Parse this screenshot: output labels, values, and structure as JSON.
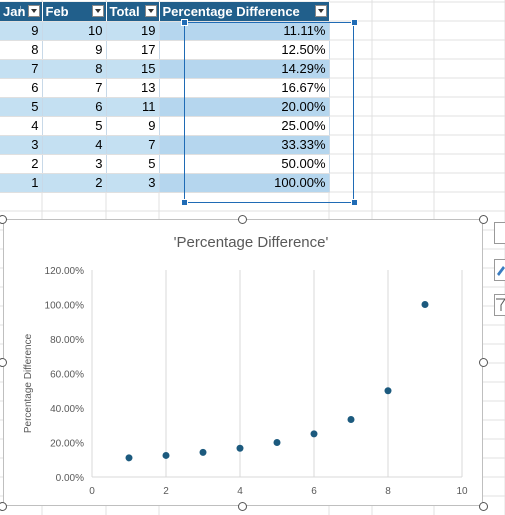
{
  "table": {
    "headers": [
      "Jan",
      "Feb",
      "Total",
      "Percentage Difference"
    ],
    "rows": [
      [
        "9",
        "10",
        "19",
        "11.11%"
      ],
      [
        "8",
        "9",
        "17",
        "12.50%"
      ],
      [
        "7",
        "8",
        "15",
        "14.29%"
      ],
      [
        "6",
        "7",
        "13",
        "16.67%"
      ],
      [
        "5",
        "6",
        "11",
        "20.00%"
      ],
      [
        "4",
        "5",
        "9",
        "25.00%"
      ],
      [
        "3",
        "4",
        "7",
        "33.33%"
      ],
      [
        "2",
        "3",
        "5",
        "50.00%"
      ],
      [
        "1",
        "2",
        "3",
        "100.00%"
      ]
    ]
  },
  "colors": {
    "header_bg": "#215f8b",
    "band": "#c4e0f2",
    "marker": "#1c5a7e",
    "selection": "#1f6bb5"
  },
  "chart_data": {
    "type": "scatter",
    "title": "'Percentage Difference'",
    "ylabel": "Percentage Difference",
    "xlabel": "",
    "x": [
      1,
      2,
      3,
      4,
      5,
      6,
      7,
      8,
      9
    ],
    "y": [
      11.11,
      12.5,
      14.29,
      16.67,
      20.0,
      25.0,
      33.33,
      50.0,
      100.0
    ],
    "xlim": [
      0,
      10
    ],
    "ylim": [
      0,
      120
    ],
    "x_ticks": [
      "0",
      "2",
      "4",
      "6",
      "8",
      "10"
    ],
    "y_ticks": [
      "0.00%",
      "20.00%",
      "40.00%",
      "60.00%",
      "80.00%",
      "100.00%",
      "120.00%"
    ],
    "grid": "vertical"
  }
}
